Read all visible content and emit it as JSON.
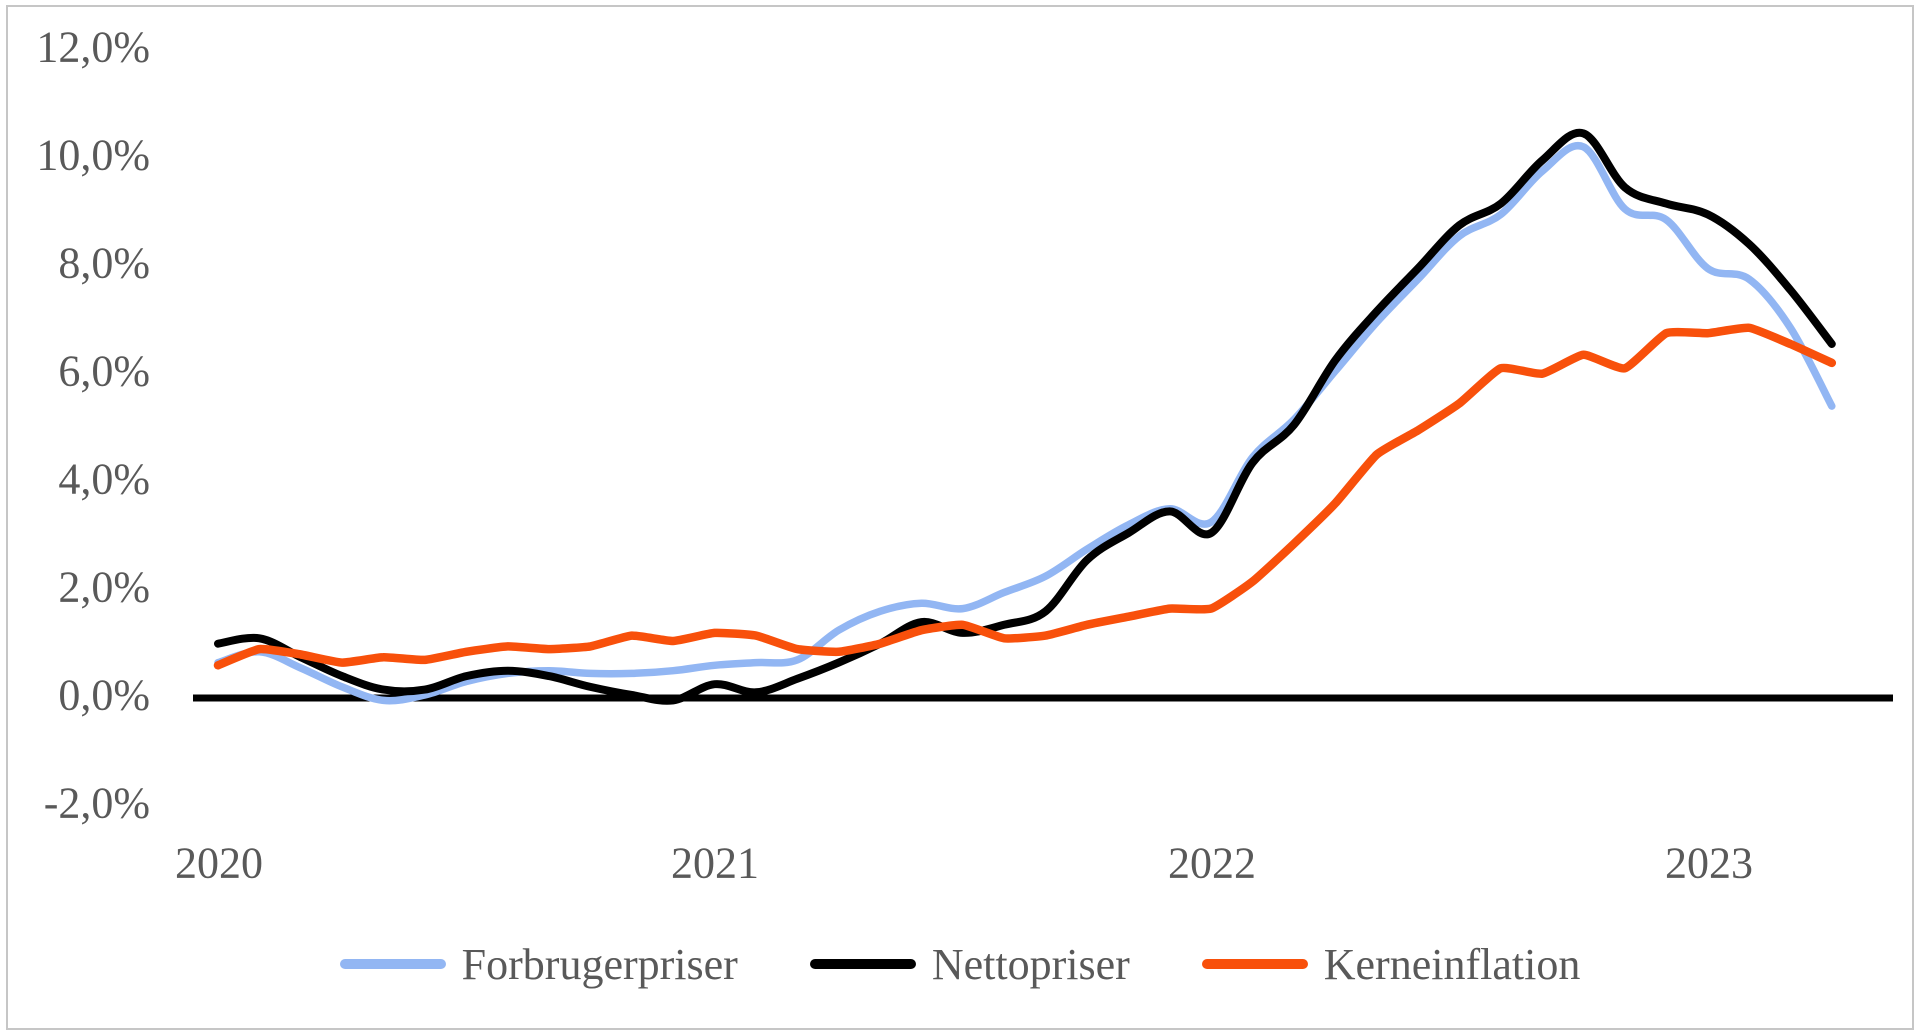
{
  "chart_data": {
    "type": "line",
    "title": "",
    "xlabel": "",
    "ylabel": "",
    "grid": false,
    "x_axis": {
      "tick_labels": [
        "2020",
        "2021",
        "2022",
        "2023"
      ]
    },
    "y_axis": {
      "tick_labels": [
        "12,0%",
        "10,0%",
        "8,0%",
        "6,0%",
        "4,0%",
        "2,0%",
        "0,0%",
        "-2,0%"
      ],
      "tick_values": [
        12,
        10,
        8,
        6,
        4,
        2,
        0,
        -2
      ],
      "ylim": [
        -2.9,
        12.9
      ],
      "unit": "percent"
    },
    "x": [
      "2020-01",
      "2020-02",
      "2020-03",
      "2020-04",
      "2020-05",
      "2020-06",
      "2020-07",
      "2020-08",
      "2020-09",
      "2020-10",
      "2020-11",
      "2020-12",
      "2021-01",
      "2021-02",
      "2021-03",
      "2021-04",
      "2021-05",
      "2021-06",
      "2021-07",
      "2021-08",
      "2021-09",
      "2021-10",
      "2021-11",
      "2021-12",
      "2022-01",
      "2022-02",
      "2022-03",
      "2022-04",
      "2022-05",
      "2022-06",
      "2022-07",
      "2022-08",
      "2022-09",
      "2022-10",
      "2022-11",
      "2022-12",
      "2023-01",
      "2023-02",
      "2023-03",
      "2023-04"
    ],
    "series": [
      {
        "name": "Forbrugerpriser",
        "color": "#92b6f3",
        "smooth": 1,
        "width": 7.5,
        "values": [
          0.6,
          0.8,
          0.5,
          0.15,
          -0.1,
          0.0,
          0.25,
          0.4,
          0.45,
          0.4,
          0.4,
          0.45,
          0.55,
          0.6,
          0.65,
          1.2,
          1.55,
          1.7,
          1.6,
          1.9,
          2.2,
          2.7,
          3.15,
          3.45,
          3.2,
          4.4,
          5.1,
          6.0,
          6.9,
          7.7,
          8.5,
          8.9,
          9.7,
          10.15,
          9.0,
          8.8,
          7.9,
          7.7,
          6.8,
          5.35
        ]
      },
      {
        "name": "Nettopriser",
        "color": "#000000",
        "smooth": 1,
        "width": 8,
        "values": [
          0.95,
          1.05,
          0.7,
          0.35,
          0.1,
          0.1,
          0.35,
          0.45,
          0.35,
          0.15,
          0.0,
          -0.1,
          0.2,
          0.05,
          0.3,
          0.6,
          0.95,
          1.35,
          1.15,
          1.3,
          1.55,
          2.5,
          3.0,
          3.4,
          3.0,
          4.3,
          5.0,
          6.2,
          7.1,
          7.9,
          8.7,
          9.1,
          9.9,
          10.4,
          9.4,
          9.1,
          8.9,
          8.35,
          7.5,
          6.5
        ]
      },
      {
        "name": "Kerneinflation",
        "color": "#f8500b",
        "smooth": 0.45,
        "width": 8.5,
        "values": [
          0.55,
          0.85,
          0.75,
          0.6,
          0.7,
          0.65,
          0.8,
          0.9,
          0.85,
          0.9,
          1.1,
          1.0,
          1.15,
          1.1,
          0.85,
          0.8,
          0.95,
          1.2,
          1.3,
          1.05,
          1.1,
          1.3,
          1.45,
          1.6,
          1.6,
          2.1,
          2.8,
          3.55,
          4.45,
          4.9,
          5.4,
          6.05,
          5.95,
          6.3,
          6.05,
          6.7,
          6.7,
          6.8,
          6.5,
          6.15
        ]
      }
    ],
    "legend": {
      "position": "bottom",
      "entries": [
        "Forbrugerpriser",
        "Nettopriser",
        "Kerneinflation"
      ]
    },
    "axis_line_color": "#000000",
    "text_color": "#595959"
  }
}
